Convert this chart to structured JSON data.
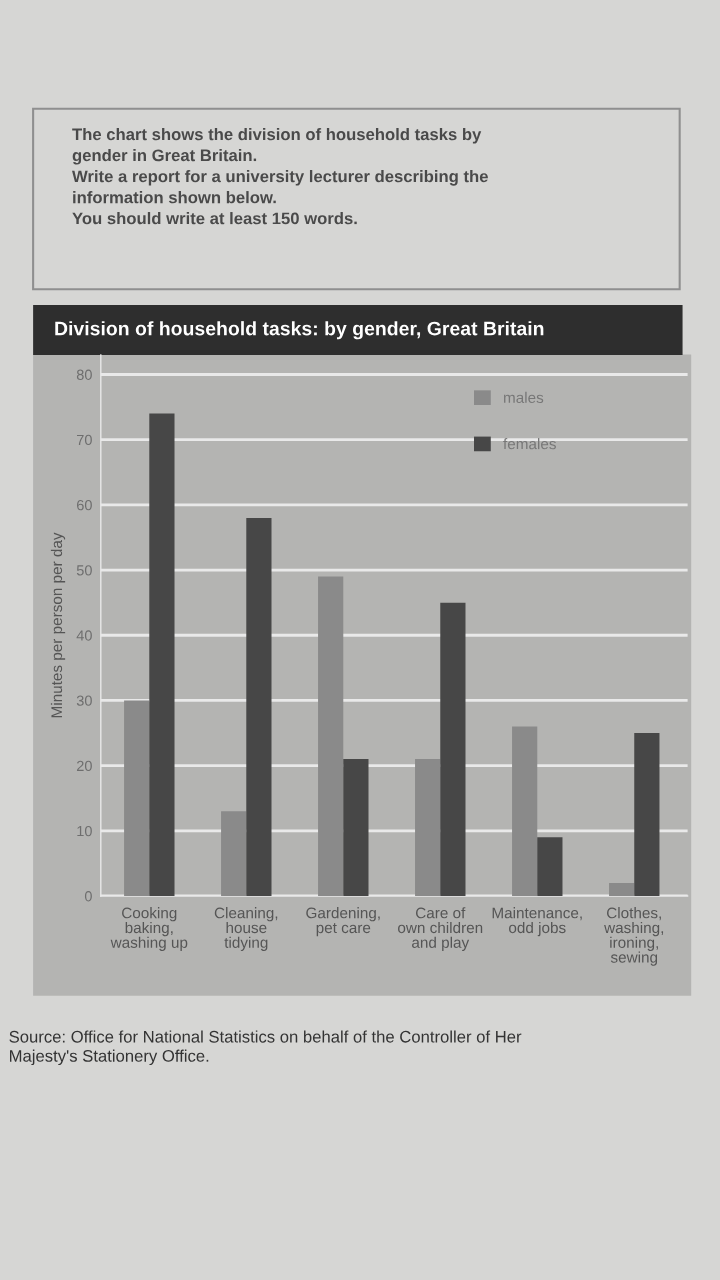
{
  "chart_data": {
    "type": "bar",
    "title": "Division of household tasks: by gender, Great Britain",
    "ylabel": "Minutes per person per day",
    "categories": [
      "Cooking\nbaking,\nwashing up",
      "Cleaning,\nhouse\ntidying",
      "Gardening,\npet care",
      "Care of\nown children\nand play",
      "Maintenance,\nodd jobs",
      "Clothes,\nwashing,\nironing,\nsewing"
    ],
    "series": [
      {
        "name": "males",
        "color": "#8a8a8a",
        "values": [
          30,
          13,
          49,
          21,
          26,
          2
        ]
      },
      {
        "name": "females",
        "color": "#474747",
        "values": [
          74,
          58,
          21,
          45,
          9,
          25
        ]
      }
    ],
    "ylim": [
      0,
      83
    ],
    "yticks": [
      0,
      10,
      20,
      30,
      40,
      50,
      60,
      70,
      80
    ],
    "grid": "y",
    "legend": "top right",
    "annotations": [
      "The chart shows the division of household tasks by\ngender in Great Britain.\nWrite a report for a university lecturer describing the\ninformation shown below.\nYou should write at least 150 words.",
      "Source: Office for National Statistics on behalf of the Controller of Her\nMajesty's Stationery Office."
    ]
  }
}
